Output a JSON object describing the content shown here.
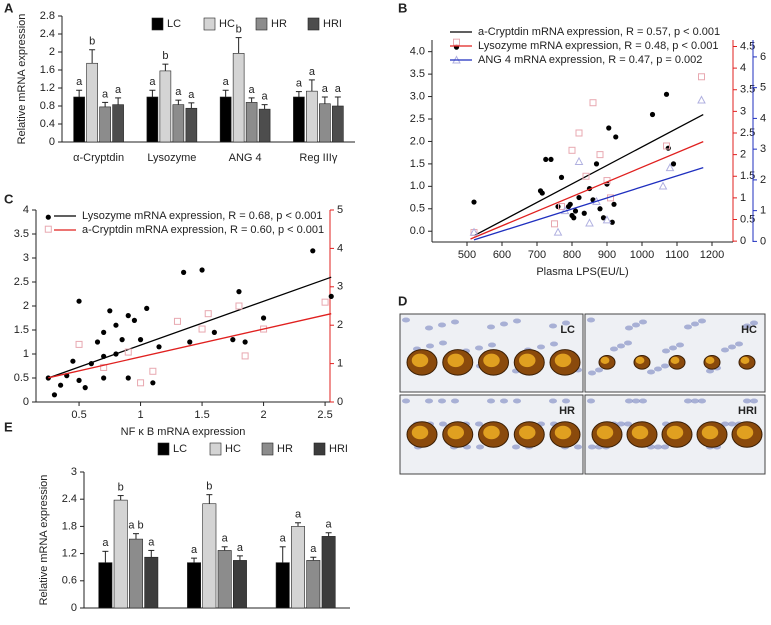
{
  "chart_data": [
    {
      "type": "bar",
      "panel": "A",
      "ylabel": "Relative mRNA expression",
      "categories": [
        "α-Cryptdin",
        "Lysozyme",
        "ANG 4",
        "Reg IIIγ"
      ],
      "ylim": [
        0,
        2.8
      ],
      "yticks": [
        0,
        0.4,
        0.8,
        1.2,
        1.6,
        2,
        2.4,
        2.8
      ],
      "series": [
        {
          "name": "LC",
          "color": "#000000",
          "values": [
            1.0,
            1.0,
            1.0,
            1.0
          ],
          "errors": [
            0.15,
            0.15,
            0.15,
            0.12
          ],
          "letters": [
            "a",
            "a",
            "a",
            "a"
          ]
        },
        {
          "name": "HC",
          "color": "#d4d4d4",
          "values": [
            1.75,
            1.58,
            1.97,
            1.13
          ],
          "errors": [
            0.3,
            0.15,
            0.35,
            0.25
          ],
          "letters": [
            "b",
            "b",
            "b",
            "a"
          ]
        },
        {
          "name": "HR",
          "color": "#8c8c8c",
          "values": [
            0.78,
            0.83,
            0.88,
            0.85
          ],
          "errors": [
            0.1,
            0.1,
            0.1,
            0.15
          ],
          "letters": [
            "a",
            "a",
            "a",
            "a"
          ]
        },
        {
          "name": "HRI",
          "color": "#4d4d4d",
          "values": [
            0.83,
            0.75,
            0.73,
            0.8
          ],
          "errors": [
            0.15,
            0.12,
            0.1,
            0.2
          ],
          "letters": [
            "a",
            "a",
            "a",
            "a"
          ]
        }
      ]
    },
    {
      "type": "scatter",
      "panel": "B",
      "xlabel": "Plasma LPS(EU/L)",
      "xlim": [
        400,
        1260
      ],
      "xticks": [
        500,
        600,
        700,
        800,
        900,
        1000,
        1100,
        1200
      ],
      "ylim": [
        -0.24,
        4.26
      ],
      "yticks": [
        {
          "value": 0,
          "label": "0.0"
        },
        0.5,
        {
          "value": 1,
          "label": "1.0"
        },
        1.5,
        {
          "value": 2,
          "label": "2.0"
        },
        2.5,
        {
          "value": 3,
          "label": "3.0"
        },
        3.5,
        {
          "value": 4,
          "label": "4.0"
        }
      ],
      "y2lim": [
        -0.02,
        4.65
      ],
      "y2ticks": [
        0,
        0.5,
        1,
        1.5,
        2,
        2.5,
        3,
        3.5,
        4,
        4.5
      ],
      "y3lim": [
        -0.02,
        6.55
      ],
      "y3ticks": [
        0,
        1,
        2,
        3,
        4,
        5,
        6
      ],
      "series": [
        {
          "name": "a-Cryptdin mRNA expression, R = 0.57, p < 0.001",
          "color": "#000000",
          "axis": "y",
          "marker": "circle",
          "x": [
            470,
            520,
            710,
            715,
            725,
            740,
            760,
            770,
            790,
            795,
            800,
            805,
            810,
            820,
            835,
            850,
            860,
            870,
            880,
            890,
            900,
            905,
            915,
            920,
            925,
            1030,
            1070,
            1075,
            1090
          ],
          "values": [
            4.1,
            0.65,
            0.9,
            0.85,
            1.6,
            1.6,
            0.55,
            1.2,
            0.55,
            0.6,
            0.35,
            0.3,
            0.45,
            0.75,
            0.4,
            0.95,
            0.7,
            1.5,
            0.5,
            0.3,
            1.05,
            2.3,
            0.2,
            0.6,
            2.1,
            2.6,
            3.05,
            1.85,
            1.5
          ],
          "fit": {
            "x": [
              520,
              1175
            ],
            "y": [
              -0.1,
              2.6
            ]
          }
        },
        {
          "name": "Lysozyme mRNA expression, R = 0.48, p < 0.001",
          "color": "#e0201f",
          "axis": "y2",
          "marker": "square",
          "x": [
            470,
            520,
            750,
            770,
            800,
            820,
            840,
            860,
            880,
            900,
            910,
            1070,
            1170
          ],
          "values": [
            4.6,
            0.2,
            0.4,
            0.8,
            2.1,
            2.5,
            1.5,
            3.2,
            2.0,
            1.4,
            1.0,
            2.2,
            3.8
          ],
          "fit": {
            "x": [
              510,
              1175
            ],
            "y": [
              0.05,
              2.3
            ]
          }
        },
        {
          "name": "ANG 4 mRNA expression, R = 0.47, p = 0.002",
          "color": "#1f2fbf",
          "axis": "y3",
          "marker": "triangle",
          "x": [
            470,
            520,
            760,
            780,
            820,
            850,
            870,
            900,
            1060,
            1080,
            1170
          ],
          "values": [
            5.9,
            0.3,
            0.3,
            1.0,
            2.6,
            0.6,
            1.3,
            0.7,
            1.8,
            2.4,
            4.6
          ],
          "fit": {
            "x": [
              520,
              1175
            ],
            "y": [
              0.05,
              2.4
            ]
          }
        }
      ]
    },
    {
      "type": "scatter",
      "panel": "C",
      "xlabel": "NF κ B mRNA expression",
      "xlim": [
        0.15,
        2.54
      ],
      "xticks": [
        0.5,
        1,
        1.5,
        2,
        2.5
      ],
      "ylim": [
        0,
        4
      ],
      "yticks": [
        0,
        0.5,
        1,
        1.5,
        2,
        2.5,
        3,
        3.5,
        4
      ],
      "y2lim": [
        0,
        5
      ],
      "y2ticks": [
        0,
        1,
        2,
        3,
        4,
        5
      ],
      "series": [
        {
          "name": "Lysozyme mRNA expression, R = 0.68, p < 0.001",
          "color": "#000000",
          "axis": "y",
          "marker": "circle",
          "x": [
            0.25,
            0.25,
            0.3,
            0.35,
            0.4,
            0.45,
            0.5,
            0.5,
            0.55,
            0.6,
            0.65,
            0.7,
            0.7,
            0.7,
            0.75,
            0.8,
            0.8,
            0.85,
            0.9,
            0.9,
            0.95,
            1.0,
            1.05,
            1.1,
            1.15,
            1.35,
            1.4,
            1.5,
            1.6,
            1.75,
            1.8,
            1.85,
            2.0,
            2.4,
            2.55
          ],
          "values": [
            3.85,
            0.5,
            0.15,
            0.35,
            0.55,
            0.85,
            2.1,
            0.45,
            0.3,
            0.8,
            1.25,
            1.45,
            0.95,
            0.5,
            1.9,
            1.6,
            1.0,
            1.3,
            0.5,
            1.8,
            1.7,
            1.3,
            1.95,
            0.4,
            1.15,
            2.7,
            1.25,
            2.75,
            1.45,
            1.3,
            2.3,
            1.25,
            1.75,
            3.15,
            2.2
          ],
          "fit": {
            "x": [
              0.25,
              2.55
            ],
            "y": [
              0.5,
              2.6
            ]
          }
        },
        {
          "name": "a-Cryptdin mRNA expression, R = 0.60, p < 0.001",
          "color": "#e0201f",
          "axis": "y2",
          "marker": "square",
          "x": [
            0.25,
            0.5,
            0.7,
            0.9,
            1.0,
            1.1,
            1.3,
            1.5,
            1.55,
            1.8,
            1.85,
            2.0,
            2.5
          ],
          "values": [
            4.5,
            1.5,
            0.9,
            1.3,
            0.5,
            0.8,
            2.1,
            1.9,
            2.3,
            2.5,
            1.2,
            1.9,
            2.6
          ],
          "fit": {
            "x": [
              0.25,
              2.55
            ],
            "y": [
              0.63,
              2.3
            ]
          }
        }
      ]
    },
    {
      "type": "bar",
      "panel": "E",
      "ylabel": "Relative mRNA expression",
      "categories": [
        null,
        null,
        null
      ],
      "ylim": [
        0,
        3
      ],
      "yticks": [
        0,
        0.6,
        1.2,
        1.8,
        2.4,
        3
      ],
      "series": [
        {
          "name": "LC",
          "color": "#000000",
          "values": [
            1.0,
            1.0,
            1.0
          ],
          "errors": [
            0.25,
            0.1,
            0.35
          ],
          "letters": [
            "a",
            "a",
            "a"
          ]
        },
        {
          "name": "HC",
          "color": "#d4d4d4",
          "values": [
            2.38,
            2.3,
            1.8
          ],
          "errors": [
            0.1,
            0.2,
            0.08
          ],
          "letters": [
            "b",
            "b",
            "a"
          ]
        },
        {
          "name": "HR",
          "color": "#8c8c8c",
          "values": [
            1.52,
            1.27,
            1.05
          ],
          "errors": [
            0.12,
            0.08,
            0.07
          ],
          "letters": [
            "a b",
            "a",
            "a"
          ]
        },
        {
          "name": "HRI",
          "color": "#3c3c3c",
          "values": [
            1.12,
            1.05,
            1.58
          ],
          "errors": [
            0.15,
            0.1,
            0.08
          ],
          "letters": [
            "a",
            "a",
            "a"
          ]
        }
      ]
    }
  ],
  "figure_d": {
    "panel": "D",
    "images": [
      {
        "label": "LC"
      },
      {
        "label": "HC"
      },
      {
        "label": "HR"
      },
      {
        "label": "HRI"
      }
    ]
  }
}
